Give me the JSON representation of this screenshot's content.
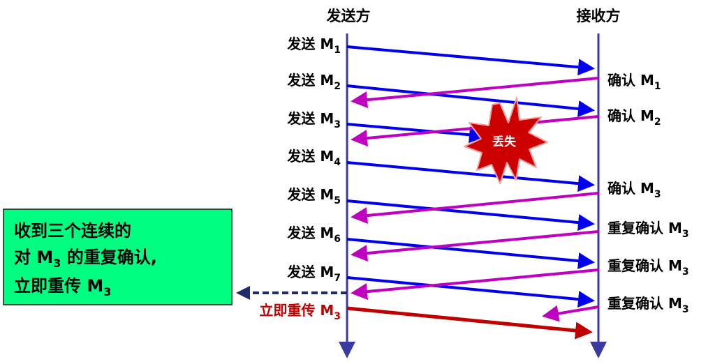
{
  "header": {
    "sender": "发送方",
    "receiver": "接收方"
  },
  "sender_events": [
    {
      "prefix": "发送 M",
      "sub": "1"
    },
    {
      "prefix": "发送 M",
      "sub": "2"
    },
    {
      "prefix": "发送 M",
      "sub": "3"
    },
    {
      "prefix": "发送 M",
      "sub": "4"
    },
    {
      "prefix": "发送 M",
      "sub": "5"
    },
    {
      "prefix": "发送 M",
      "sub": "6"
    },
    {
      "prefix": "发送 M",
      "sub": "7"
    }
  ],
  "receiver_events": [
    {
      "prefix": "确认 M",
      "sub": "1"
    },
    {
      "prefix": "确认 M",
      "sub": "2"
    },
    {
      "prefix": "确认 M",
      "sub": "3"
    },
    {
      "prefix": "重复确认 M",
      "sub": "3"
    },
    {
      "prefix": "重复确认 M",
      "sub": "3"
    },
    {
      "prefix": "重复确认 M",
      "sub": "3"
    }
  ],
  "loss_label": "丢失",
  "retransmit": {
    "prefix": "立即重传 M",
    "sub": "3"
  },
  "note": {
    "line1": "收到三个连续的",
    "line2_prefix": "对 M",
    "line2_sub": "3",
    "line2_suffix": " 的重复确认,",
    "line3_prefix": "立即重传 M",
    "line3_sub": "3"
  },
  "colors": {
    "data": "#0000ee",
    "ack": "#c000c0",
    "retransmit": "#c00000",
    "lifeline": "#3a3aa0",
    "note_bg": "#00ff80",
    "burst": "#cc0000"
  }
}
